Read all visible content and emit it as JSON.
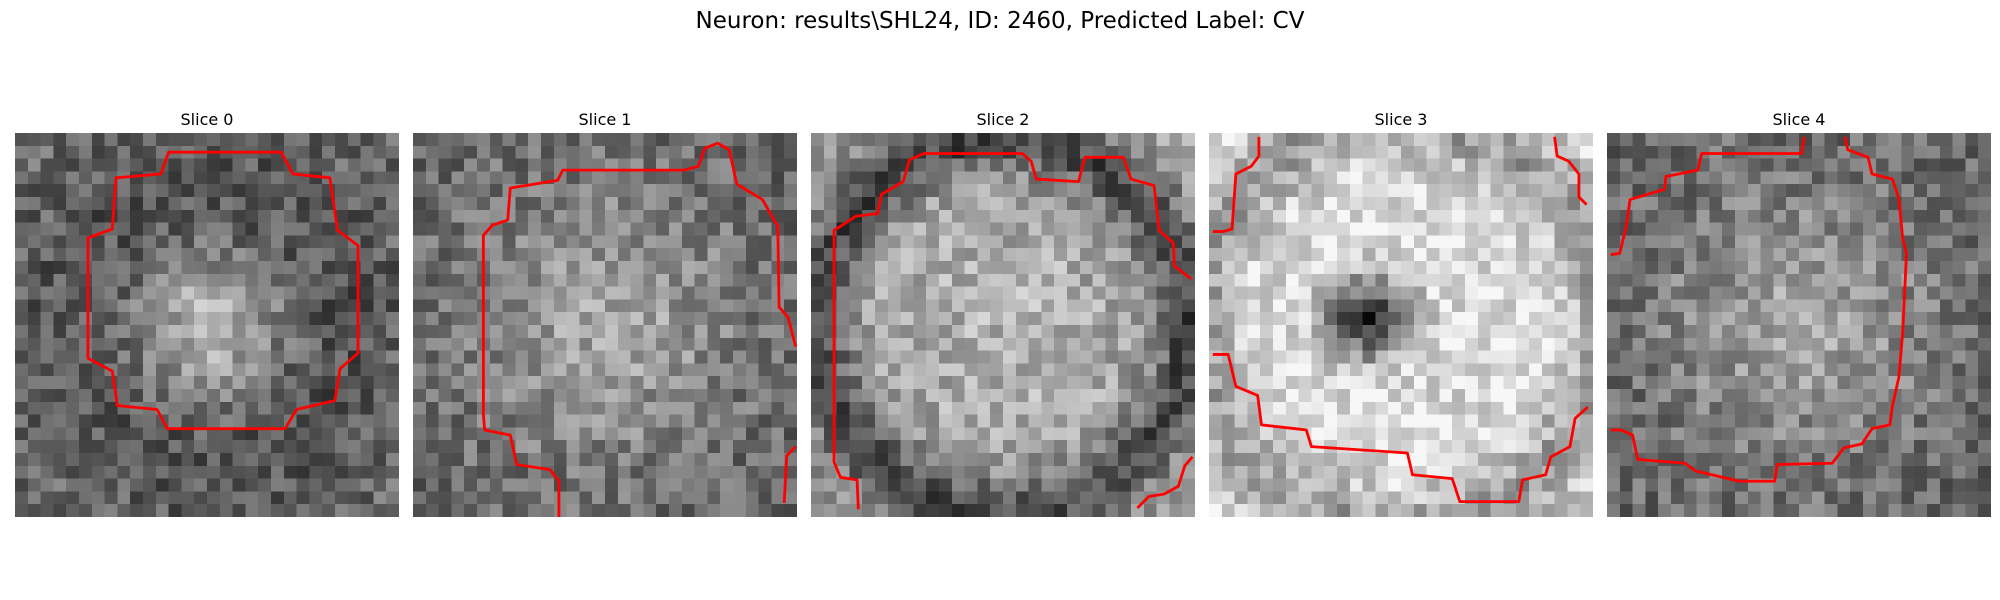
{
  "figure": {
    "title": "Neuron: results\\SHL24, ID: 2460, Predicted Label: CV"
  },
  "contour_color": "#ff0000",
  "slices": [
    {
      "title": "Slice 0",
      "kind": "soft-center-blob",
      "seed": 11
    },
    {
      "title": "Slice 1",
      "kind": "noisy-bright-center",
      "seed": 23
    },
    {
      "title": "Slice 2",
      "kind": "dark-ring-bright-fill",
      "seed": 37
    },
    {
      "title": "Slice 3",
      "kind": "bright-ring-dark-core",
      "seed": 41
    },
    {
      "title": "Slice 4",
      "kind": "noisy-bright-center",
      "seed": 59
    }
  ]
}
